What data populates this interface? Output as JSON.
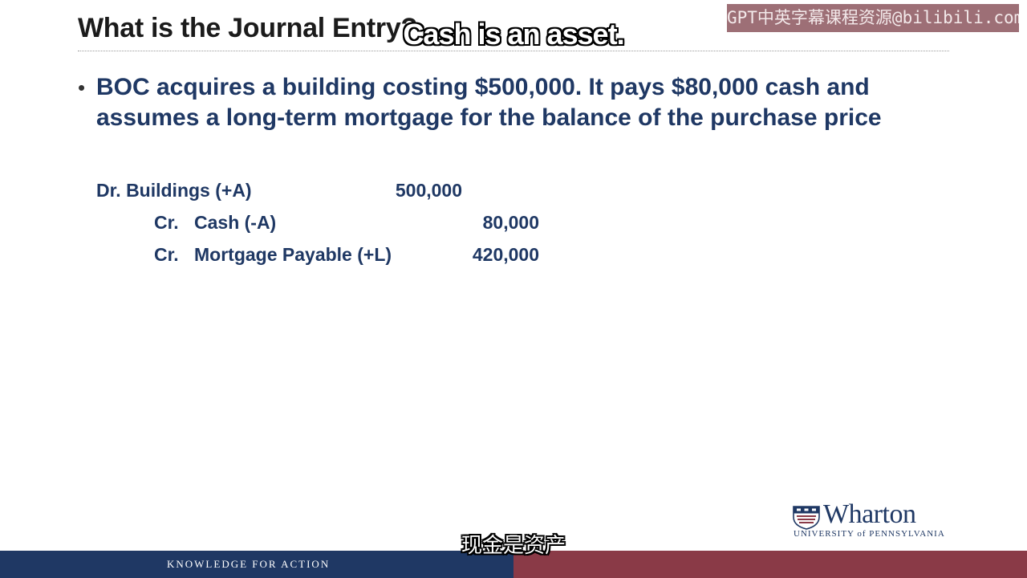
{
  "slide": {
    "title": "What is the Journal Entry?",
    "bullet": "BOC acquires a building costing $500,000.  It pays $80,000 cash and assumes a long-term mortgage for the balance of the purchase price",
    "entries": [
      {
        "label": "Dr. Buildings (+A)",
        "amount": "500,000"
      },
      {
        "prefix": "Cr.",
        "account": "Cash (-A)",
        "amount": "80,000"
      },
      {
        "prefix": "Cr.",
        "account": "Mortgage Payable (+L)",
        "amount": "420,000"
      }
    ]
  },
  "logo": {
    "name": "Wharton",
    "subtitle": "UNIVERSITY of PENNSYLVANIA"
  },
  "footer": {
    "tagline": "KNOWLEDGE FOR ACTION"
  },
  "captions": {
    "english": "Cash is an asset.",
    "chinese": "现金是资产"
  },
  "watermark": "GPT中英字幕课程资源@bilibili.com",
  "colors": {
    "navy": "#1f3864",
    "maroon": "#8a3a47",
    "watermark_bg": "#824650"
  }
}
